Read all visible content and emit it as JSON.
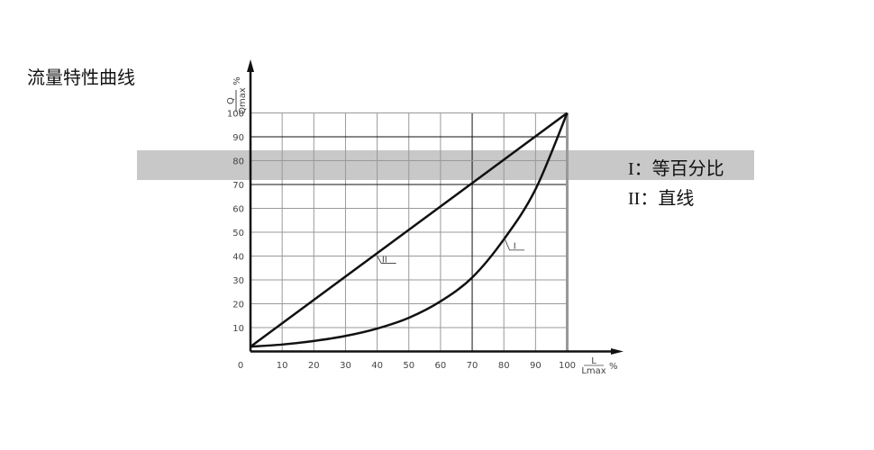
{
  "title": "流量特性曲线",
  "legend": [
    {
      "marker": "I",
      "separator": "：",
      "text": "等百分比"
    },
    {
      "marker": "II",
      "separator": "：",
      "text": "直线"
    }
  ],
  "chart_data": {
    "type": "line",
    "title": "",
    "xlabel": {
      "numerator": "L",
      "denominator": "Lmax",
      "unit": "%"
    },
    "ylabel": {
      "numerator": "Q",
      "denominator": "Qmax",
      "unit": "%"
    },
    "xlim": [
      0,
      100
    ],
    "ylim": [
      0,
      100
    ],
    "xticks": [
      "0",
      "10",
      "20",
      "30",
      "40",
      "50",
      "60",
      "70",
      "80",
      "90",
      "100"
    ],
    "yticks": [
      "10",
      "20",
      "30",
      "40",
      "50",
      "60",
      "70",
      "80",
      "90",
      "100"
    ],
    "grid": true,
    "highlight_band_y": [
      72,
      84
    ],
    "series": [
      {
        "name": "I",
        "x": [
          0,
          10,
          20,
          30,
          40,
          50,
          60,
          70,
          80,
          90,
          100
        ],
        "y": [
          2,
          2.9,
          4.4,
          6.5,
          9.6,
          14.1,
          21,
          31,
          47,
          68,
          100
        ]
      },
      {
        "name": "II",
        "x": [
          0,
          100
        ],
        "y": [
          2,
          100
        ]
      }
    ],
    "colors": {
      "line": "#111111",
      "grid": "#888888",
      "band": "#c8c8c8"
    }
  }
}
